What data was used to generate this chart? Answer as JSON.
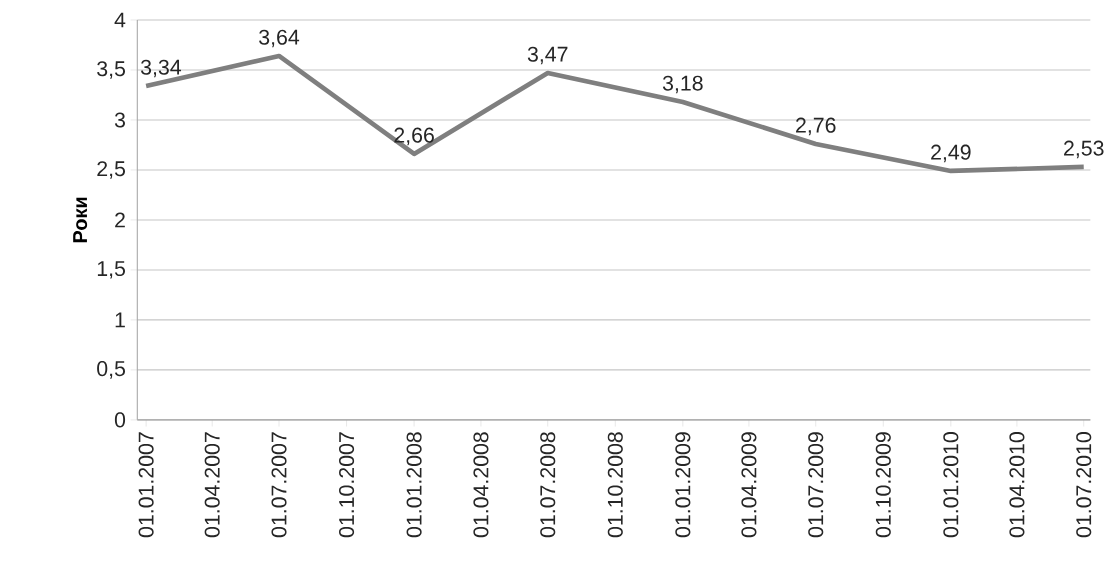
{
  "chart_data": {
    "type": "line",
    "ylabel": "Роки",
    "x": [
      "2007-01-01",
      "2007-07-01",
      "2008-01-01",
      "2008-07-01",
      "2009-01-01",
      "2009-07-01",
      "2010-01-01",
      "2010-07-01"
    ],
    "values": [
      3.34,
      3.64,
      2.66,
      3.47,
      3.18,
      2.76,
      2.49,
      2.53
    ],
    "value_labels": [
      "3,34",
      "3,64",
      "2,66",
      "3,47",
      "3,18",
      "2,76",
      "2,49",
      "2,53"
    ],
    "color": "#7f7f7f",
    "line_style": "solid",
    "grid": "y",
    "xlim": [
      "2006-12-20",
      "2010-07-10"
    ],
    "xticks": [
      {
        "value": "2007-01-01",
        "label": "01.01.2007"
      },
      {
        "value": "2007-04-01",
        "label": "01.04.2007"
      },
      {
        "value": "2007-07-01",
        "label": "01.07.2007"
      },
      {
        "value": "2007-10-01",
        "label": "01.10.2007"
      },
      {
        "value": "2008-01-01",
        "label": "01.01.2008"
      },
      {
        "value": "2008-04-01",
        "label": "01.04.2008"
      },
      {
        "value": "2008-07-01",
        "label": "01.07.2008"
      },
      {
        "value": "2008-10-01",
        "label": "01.10.2008"
      },
      {
        "value": "2009-01-01",
        "label": "01.01.2009"
      },
      {
        "value": "2009-04-01",
        "label": "01.04.2009"
      },
      {
        "value": "2009-07-01",
        "label": "01.07.2009"
      },
      {
        "value": "2009-10-01",
        "label": "01.10.2009"
      },
      {
        "value": "2010-01-01",
        "label": "01.01.2010"
      },
      {
        "value": "2010-04-01",
        "label": "01.04.2010"
      },
      {
        "value": "2010-07-01",
        "label": "01.07.2010"
      }
    ],
    "ylim": [
      0,
      4
    ],
    "yticks": [
      {
        "value": 0,
        "label": "0"
      },
      {
        "value": 0.5,
        "label": "0,5"
      },
      {
        "value": 1,
        "label": "1"
      },
      {
        "value": 1.5,
        "label": "1,5"
      },
      {
        "value": 2,
        "label": "2"
      },
      {
        "value": 2.5,
        "label": "2,5"
      },
      {
        "value": 3,
        "label": "3"
      },
      {
        "value": 3.5,
        "label": "3,5"
      },
      {
        "value": 4,
        "label": "4"
      }
    ]
  }
}
